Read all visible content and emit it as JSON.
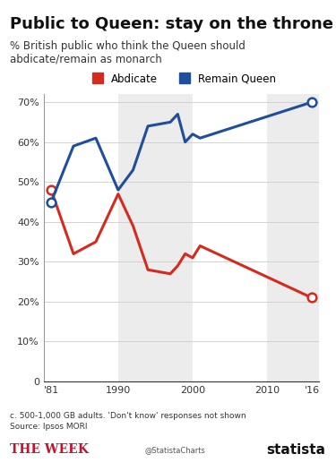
{
  "chart_data": {
    "type": "line",
    "title": "Public to Queen: stay on the throne",
    "subtitle": "% British public who think the Queen should abdicate/remain as monarch",
    "x": [
      1981,
      1984,
      1987,
      1990,
      1992,
      1994,
      1997,
      1998,
      1999,
      2000,
      2001,
      2016
    ],
    "series": [
      {
        "name": "Abdicate",
        "color": "#d52b1e",
        "marker": "o",
        "values": [
          48,
          32,
          35,
          47,
          39,
          28,
          27,
          29,
          32,
          31,
          34,
          21
        ]
      },
      {
        "name": "Remain Queen",
        "color": "#1f4e9c",
        "marker": "o",
        "values": [
          45,
          59,
          61,
          48,
          53,
          64,
          65,
          67,
          60,
          62,
          61,
          70
        ]
      }
    ],
    "xlim": [
      1980,
      2017
    ],
    "xticks": [
      {
        "value": 1981,
        "label": "'81"
      },
      1990,
      2000,
      2010,
      {
        "value": 2016,
        "label": "'16"
      }
    ],
    "ylim": [
      0,
      72
    ],
    "yticks": [
      0,
      {
        "value": 10,
        "label": "10%"
      },
      {
        "value": 20,
        "label": "20%"
      },
      {
        "value": 30,
        "label": "30%"
      },
      {
        "value": 40,
        "label": "40%"
      },
      {
        "value": 50,
        "label": "50%"
      },
      {
        "value": 60,
        "label": "60%"
      },
      {
        "value": 70,
        "label": "70%"
      }
    ],
    "grid": true,
    "legend": "lower center",
    "notes": [
      "c. 500-1,000 GB adults. 'Don't know' responses not shown",
      "Source: Ipsos MORI"
    ],
    "credits": [
      "THE WEEK",
      "@StatistaCharts",
      "statista"
    ]
  }
}
